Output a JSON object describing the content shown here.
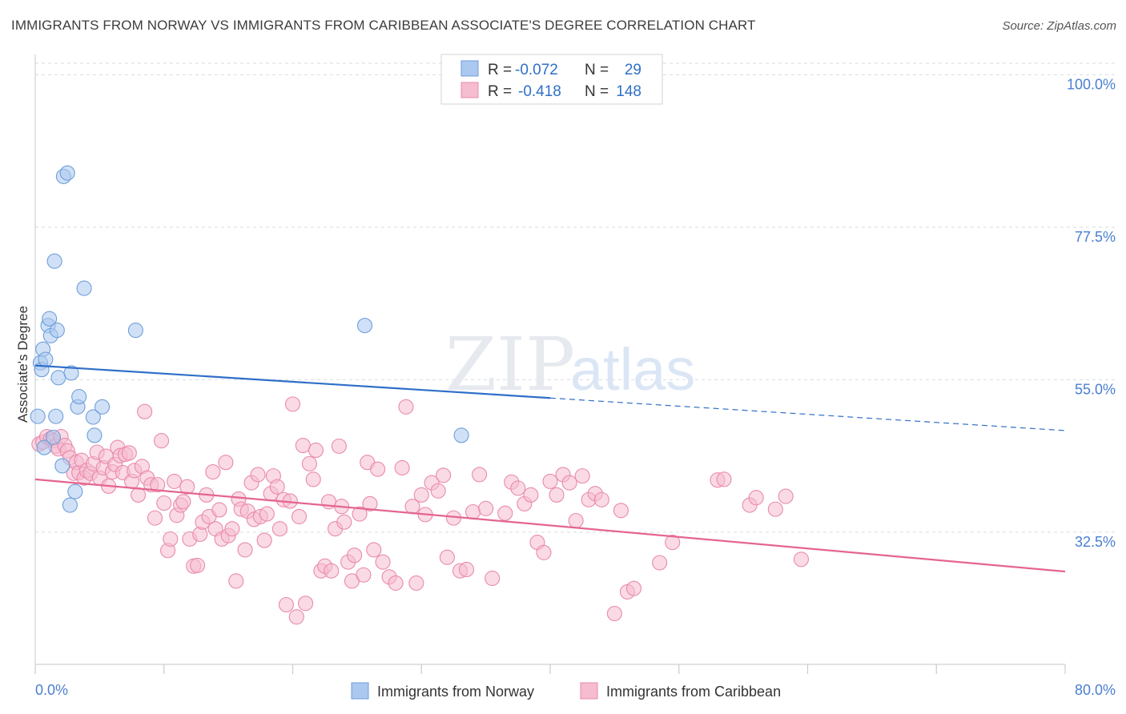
{
  "title": "IMMIGRANTS FROM NORWAY VS IMMIGRANTS FROM CARIBBEAN ASSOCIATE'S DEGREE CORRELATION CHART",
  "source": "Source: ZipAtlas.com",
  "watermark": {
    "part1": "ZIP",
    "part2": "atlas"
  },
  "colors": {
    "norway_fill": "#aac8f0",
    "norway_stroke": "#6f9ed9",
    "norway_line": "#2f6fc8",
    "carib_fill": "#f6bcd0",
    "carib_stroke": "#e98aac",
    "carib_line": "#e4658f",
    "axis_text": "#4a7fd0",
    "grid": "#d8dbe0"
  },
  "legend": {
    "rows": [
      {
        "r_label": "R =",
        "r_value": "-0.072",
        "n_label": "N =",
        "n_value": "29",
        "series": "norway"
      },
      {
        "r_label": "R =",
        "r_value": "-0.418",
        "n_label": "N =",
        "n_value": "148",
        "series": "carib"
      }
    ]
  },
  "chart_data": {
    "type": "scatter",
    "title": "IMMIGRANTS FROM NORWAY VS IMMIGRANTS FROM CARIBBEAN ASSOCIATE'S DEGREE CORRELATION CHART",
    "xlabel": "",
    "ylabel": "Associate's Degree",
    "xlim": [
      0,
      80
    ],
    "ylim": [
      13,
      103
    ],
    "x_tick_labels": [
      "0.0%",
      "80.0%"
    ],
    "y_ticks": [
      100.0,
      77.5,
      55.0,
      32.5
    ],
    "y_tick_labels": [
      "100.0%",
      "77.5%",
      "55.0%",
      "32.5%"
    ],
    "grid": true,
    "legend_position": "top-center",
    "series": [
      {
        "name": "Immigrants from Norway",
        "color": "#aac8f0",
        "trend": {
          "x": [
            0,
            40
          ],
          "y": [
            57.1,
            52.3
          ],
          "dashed_extension_to": [
            80,
            47.5
          ]
        },
        "points": [
          [
            0.2,
            49.6
          ],
          [
            0.4,
            57.5
          ],
          [
            0.5,
            56.5
          ],
          [
            0.6,
            59.5
          ],
          [
            0.7,
            45
          ],
          [
            0.8,
            58
          ],
          [
            1.0,
            63
          ],
          [
            1.1,
            64
          ],
          [
            1.2,
            61.5
          ],
          [
            1.4,
            46.5
          ],
          [
            1.5,
            72.5
          ],
          [
            1.6,
            49.6
          ],
          [
            1.7,
            62.3
          ],
          [
            1.8,
            55.3
          ],
          [
            2.1,
            42.3
          ],
          [
            2.2,
            85
          ],
          [
            2.5,
            85.5
          ],
          [
            2.7,
            36.5
          ],
          [
            2.8,
            56
          ],
          [
            3.1,
            38.5
          ],
          [
            3.3,
            51
          ],
          [
            3.4,
            52.5
          ],
          [
            3.8,
            68.5
          ],
          [
            4.5,
            49.5
          ],
          [
            4.6,
            46.8
          ],
          [
            5.2,
            51
          ],
          [
            7.8,
            62.3
          ],
          [
            25.6,
            63
          ],
          [
            33.1,
            46.8
          ]
        ]
      },
      {
        "name": "Immigrants from Caribbean",
        "color": "#f6bcd0",
        "trend": {
          "x": [
            0,
            80
          ],
          "y": [
            40.3,
            26.7
          ]
        },
        "points": [
          [
            0.3,
            45.5
          ],
          [
            0.6,
            45.8
          ],
          [
            0.9,
            46.6
          ],
          [
            1.2,
            46.3
          ],
          [
            1.4,
            46.0
          ],
          [
            1.6,
            45.2
          ],
          [
            1.8,
            44.8
          ],
          [
            2.0,
            46.6
          ],
          [
            2.3,
            45.3
          ],
          [
            2.5,
            44.5
          ],
          [
            2.7,
            43.5
          ],
          [
            3.0,
            41.2
          ],
          [
            3.2,
            42.8
          ],
          [
            3.4,
            41.3
          ],
          [
            3.6,
            43.1
          ],
          [
            3.8,
            40.5
          ],
          [
            4.0,
            41.6
          ],
          [
            4.3,
            41.2
          ],
          [
            4.5,
            42.6
          ],
          [
            4.8,
            44.3
          ],
          [
            5.0,
            40.5
          ],
          [
            5.3,
            42.0
          ],
          [
            5.5,
            43.7
          ],
          [
            5.7,
            39.3
          ],
          [
            6.0,
            41.4
          ],
          [
            6.2,
            42.5
          ],
          [
            6.4,
            45.0
          ],
          [
            6.6,
            43.8
          ],
          [
            6.8,
            41.3
          ],
          [
            7.0,
            44.0
          ],
          [
            7.3,
            44.2
          ],
          [
            7.5,
            40.0
          ],
          [
            7.7,
            41.6
          ],
          [
            8.0,
            38.0
          ],
          [
            8.3,
            42.2
          ],
          [
            8.5,
            50.3
          ],
          [
            8.7,
            40.5
          ],
          [
            9.0,
            39.5
          ],
          [
            9.3,
            34.6
          ],
          [
            9.5,
            39.5
          ],
          [
            9.8,
            46.0
          ],
          [
            10.0,
            36.8
          ],
          [
            10.3,
            29.8
          ],
          [
            10.5,
            31.5
          ],
          [
            10.8,
            40.0
          ],
          [
            11.0,
            35.0
          ],
          [
            11.3,
            36.5
          ],
          [
            11.5,
            37.0
          ],
          [
            11.8,
            39.2
          ],
          [
            12.0,
            31.5
          ],
          [
            12.3,
            27.5
          ],
          [
            12.6,
            27.6
          ],
          [
            12.8,
            32.2
          ],
          [
            13.0,
            34.0
          ],
          [
            13.3,
            38.0
          ],
          [
            13.5,
            34.8
          ],
          [
            13.8,
            41.4
          ],
          [
            14.0,
            33.0
          ],
          [
            14.3,
            35.8
          ],
          [
            14.5,
            31.5
          ],
          [
            14.8,
            42.8
          ],
          [
            15.0,
            32.0
          ],
          [
            15.3,
            33.0
          ],
          [
            15.6,
            25.3
          ],
          [
            15.8,
            37.4
          ],
          [
            16.0,
            35.9
          ],
          [
            16.3,
            29.9
          ],
          [
            16.5,
            35.6
          ],
          [
            16.8,
            39.8
          ],
          [
            17.0,
            34.4
          ],
          [
            17.3,
            41.0
          ],
          [
            17.5,
            34.8
          ],
          [
            17.8,
            31.3
          ],
          [
            18.0,
            35.2
          ],
          [
            18.3,
            38.2
          ],
          [
            18.5,
            40.8
          ],
          [
            18.8,
            39.2
          ],
          [
            19.0,
            33.0
          ],
          [
            19.3,
            37.3
          ],
          [
            19.5,
            21.8
          ],
          [
            19.8,
            37.1
          ],
          [
            20.0,
            51.4
          ],
          [
            20.3,
            20.0
          ],
          [
            20.5,
            34.8
          ],
          [
            20.8,
            45.3
          ],
          [
            21.0,
            22.0
          ],
          [
            21.3,
            42.6
          ],
          [
            21.6,
            40.3
          ],
          [
            21.8,
            44.6
          ],
          [
            22.2,
            26.8
          ],
          [
            22.5,
            27.5
          ],
          [
            22.8,
            37.0
          ],
          [
            23.0,
            26.8
          ],
          [
            23.3,
            33.0
          ],
          [
            23.6,
            45.2
          ],
          [
            23.8,
            36.3
          ],
          [
            24.0,
            34.0
          ],
          [
            24.3,
            28.1
          ],
          [
            24.6,
            25.3
          ],
          [
            24.8,
            29.1
          ],
          [
            25.2,
            35.2
          ],
          [
            25.5,
            26.2
          ],
          [
            25.8,
            42.8
          ],
          [
            26.0,
            36.7
          ],
          [
            26.3,
            29.9
          ],
          [
            26.6,
            41.8
          ],
          [
            27.0,
            28.1
          ],
          [
            27.5,
            25.9
          ],
          [
            28.0,
            25.0
          ],
          [
            28.5,
            42.0
          ],
          [
            28.8,
            51.0
          ],
          [
            29.3,
            36.3
          ],
          [
            29.6,
            25.0
          ],
          [
            30.0,
            38.0
          ],
          [
            30.3,
            35.1
          ],
          [
            30.8,
            39.8
          ],
          [
            31.3,
            38.6
          ],
          [
            31.7,
            40.9
          ],
          [
            32.0,
            28.8
          ],
          [
            32.5,
            34.6
          ],
          [
            33.0,
            26.8
          ],
          [
            33.5,
            27.0
          ],
          [
            34.0,
            35.5
          ],
          [
            34.5,
            41.0
          ],
          [
            35.0,
            36.0
          ],
          [
            35.5,
            25.7
          ],
          [
            36.5,
            35.3
          ],
          [
            37.0,
            39.9
          ],
          [
            37.5,
            39.0
          ],
          [
            38.0,
            36.7
          ],
          [
            38.5,
            38.0
          ],
          [
            39.0,
            31.0
          ],
          [
            39.5,
            29.5
          ],
          [
            40.0,
            40.0
          ],
          [
            40.5,
            38.0
          ],
          [
            41.0,
            41.0
          ],
          [
            41.5,
            39.8
          ],
          [
            42.0,
            34.2
          ],
          [
            42.5,
            40.8
          ],
          [
            43.0,
            37.3
          ],
          [
            43.5,
            38.2
          ],
          [
            44.0,
            37.3
          ],
          [
            45.0,
            20.5
          ],
          [
            45.5,
            35.7
          ],
          [
            46.0,
            23.7
          ],
          [
            46.5,
            24.2
          ],
          [
            48.5,
            28.0
          ],
          [
            49.5,
            31.0
          ],
          [
            53.0,
            40.2
          ],
          [
            53.5,
            40.3
          ],
          [
            55.5,
            36.5
          ],
          [
            56.0,
            37.6
          ],
          [
            57.5,
            35.9
          ],
          [
            58.3,
            37.8
          ],
          [
            59.5,
            28.5
          ]
        ]
      }
    ]
  },
  "bottom_legend": {
    "items": [
      {
        "label": "Immigrants from Norway",
        "series": "norway"
      },
      {
        "label": "Immigrants from Caribbean",
        "series": "carib"
      }
    ]
  }
}
